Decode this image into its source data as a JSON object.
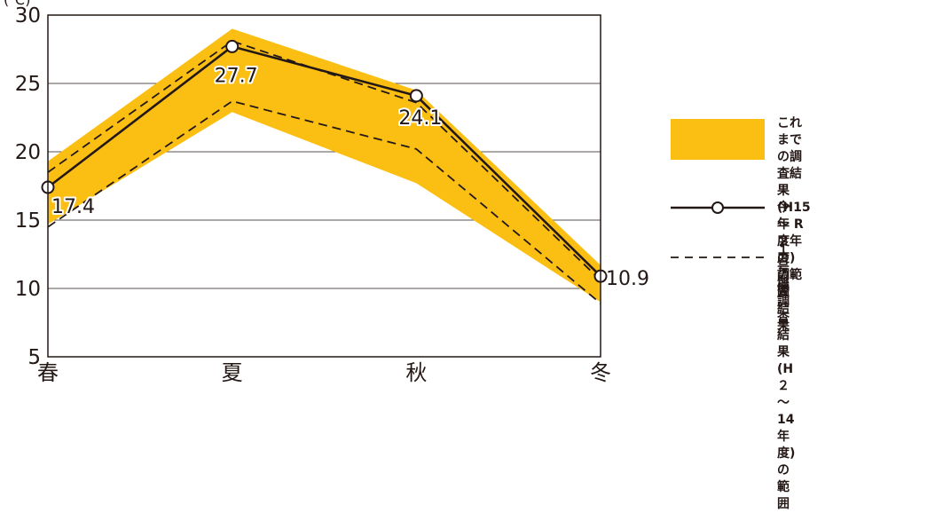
{
  "chart_data": {
    "type": "line",
    "unit_label": "(℃)",
    "categories": [
      "春",
      "夏",
      "秋",
      "冬"
    ],
    "ylim": [
      5,
      30
    ],
    "yticks": [
      5,
      10,
      15,
      20,
      25,
      30
    ],
    "grid": true,
    "legend_position": "right",
    "band": {
      "name": "これまでの調査結果\n(H15 ～ R２年度)\nの範囲",
      "lower": [
        14.7,
        22.9,
        17.7,
        9.0
      ],
      "upper": [
        19.3,
        29.0,
        24.5,
        11.7
      ],
      "color": "#fbbf14"
    },
    "series": [
      {
        "name": "今年度の調査結果",
        "values": [
          17.4,
          27.7,
          24.1,
          10.9
        ],
        "data_labels": [
          "17.4",
          "27.7",
          "24.1",
          "10.9"
        ],
        "style": "solid-with-markers",
        "color": "#231815"
      }
    ],
    "reference_range": {
      "name": "１号機調査結果\n(H２～ 14年度)の範囲",
      "lower": [
        14.5,
        23.7,
        20.2,
        8.9
      ],
      "upper": [
        18.5,
        28.1,
        23.6,
        10.6
      ],
      "style": "dashed",
      "color": "#231815"
    }
  }
}
